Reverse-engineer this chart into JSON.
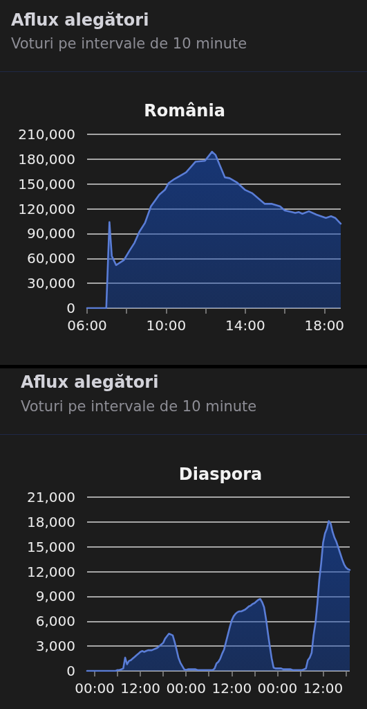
{
  "chart_data": [
    {
      "type": "other",
      "title": "Aflux alegători",
      "subtitle": "Voturi pe intervale de 10 minute"
    },
    {
      "type": "area",
      "title": "România",
      "color": "#5a7dd6",
      "marker": "none",
      "grid": "y",
      "x": [
        6,
        6.97,
        7.13,
        7.25,
        7.47,
        7.86,
        8.16,
        8.4,
        8.64,
        8.93,
        9.23,
        9.65,
        9.94,
        10.12,
        10.42,
        10.71,
        11.01,
        11.49,
        11.96,
        12.32,
        12.5,
        12.97,
        13.21,
        13.57,
        13.98,
        14.34,
        14.69,
        14.99,
        15.35,
        15.76,
        16.0,
        16.36,
        16.53,
        16.71,
        16.89,
        17.22,
        17.6,
        18.08,
        18.34,
        18.55,
        18.83
      ],
      "values": [
        0,
        0,
        104000,
        63000,
        52000,
        58000,
        70000,
        79000,
        92000,
        103000,
        123000,
        137000,
        143000,
        151000,
        156000,
        160000,
        164000,
        177000,
        178000,
        189000,
        185000,
        158000,
        157000,
        152000,
        143000,
        139000,
        132000,
        126000,
        126000,
        123000,
        118000,
        116000,
        115000,
        116000,
        114000,
        117000,
        113000,
        109000,
        111000,
        109000,
        102000
      ],
      "xlim": [
        6,
        18.83
      ],
      "xticks": [
        {
          "value": 6,
          "label": "06:00"
        },
        {
          "value": 8,
          "label": null
        },
        {
          "value": 10,
          "label": "10:00"
        },
        {
          "value": 12,
          "label": null
        },
        {
          "value": 14,
          "label": "14:00"
        },
        {
          "value": 16,
          "label": null
        },
        {
          "value": 18,
          "label": "18:00"
        }
      ],
      "ylim": [
        0,
        210000
      ],
      "yticks": [
        {
          "value": 0,
          "label": "0"
        },
        {
          "value": 30000,
          "label": "30,000"
        },
        {
          "value": 60000,
          "label": "60,000"
        },
        {
          "value": 90000,
          "label": "90,000"
        },
        {
          "value": 120000,
          "label": "120,000"
        },
        {
          "value": 150000,
          "label": "150,000"
        },
        {
          "value": 180000,
          "label": "180,000"
        },
        {
          "value": 210000,
          "label": "210,000"
        }
      ]
    },
    {
      "type": "other",
      "title": "Aflux alegători",
      "subtitle": "Voturi pe intervale de 10 minute"
    },
    {
      "type": "area",
      "title": "Diaspora",
      "color": "#5a7dd6",
      "marker": "none",
      "grid": "y",
      "categories": [
        null,
        null,
        null,
        null,
        "00:00",
        null,
        null,
        null,
        null,
        null,
        null,
        null,
        null,
        null,
        null,
        null,
        null,
        null,
        null,
        null,
        null,
        null,
        null,
        null,
        null,
        null,
        null,
        null,
        "12:00",
        null,
        null,
        null,
        null,
        null,
        null,
        null,
        null,
        null,
        null,
        null,
        null,
        null,
        null,
        null,
        null,
        null,
        null,
        null,
        null,
        null,
        null,
        null,
        "00:00",
        null,
        null,
        null,
        null,
        null,
        null,
        null,
        null,
        null,
        null,
        null,
        null,
        null,
        null,
        null,
        null,
        null,
        null,
        null,
        null,
        null,
        null,
        null,
        "12:00",
        null,
        null,
        null,
        null,
        null,
        null,
        null,
        null,
        null,
        null,
        null,
        null,
        null,
        null,
        null,
        null,
        null,
        null,
        null,
        null,
        null,
        null,
        null,
        "00:00",
        null,
        null,
        null,
        null,
        null,
        null,
        null,
        null,
        null,
        null,
        null,
        null,
        null,
        null,
        null,
        null,
        null,
        null,
        null,
        null,
        null,
        null,
        null,
        "12:00",
        null,
        null,
        null,
        null,
        null,
        null,
        null,
        null,
        null,
        null,
        null,
        null,
        null,
        null
      ],
      "values": [
        0,
        0,
        0,
        0,
        0,
        0,
        0,
        0,
        0,
        0,
        0,
        0,
        0,
        0,
        0,
        0,
        100,
        100,
        200,
        300,
        1600,
        800,
        1200,
        1300,
        1500,
        1700,
        1900,
        2100,
        2300,
        2400,
        2300,
        2400,
        2500,
        2500,
        2500,
        2600,
        2700,
        2800,
        3000,
        3200,
        3400,
        3900,
        4200,
        4500,
        4400,
        4300,
        3500,
        2600,
        1600,
        1000,
        600,
        200,
        100,
        200,
        200,
        200,
        200,
        200,
        100,
        100,
        100,
        100,
        100,
        100,
        100,
        100,
        100,
        300,
        900,
        1100,
        1500,
        2100,
        2600,
        3500,
        4400,
        5300,
        6100,
        6600,
        6900,
        7100,
        7200,
        7200,
        7300,
        7400,
        7600,
        7800,
        7900,
        8100,
        8200,
        8400,
        8600,
        8700,
        8300,
        7700,
        6300,
        4600,
        3000,
        1500,
        400,
        300,
        300,
        300,
        300,
        200,
        200,
        200,
        200,
        200,
        100,
        100,
        100,
        100,
        100,
        100,
        200,
        300,
        1300,
        1600,
        2200,
        4300,
        5800,
        8100,
        11000,
        13000,
        15500,
        16600,
        17200,
        18100,
        17800,
        16800,
        16100,
        15600,
        14900,
        14200,
        13500,
        12900,
        12500,
        12300,
        12200
      ],
      "ylim": [
        0,
        21000
      ],
      "yticks": [
        {
          "value": 0,
          "label": "0"
        },
        {
          "value": 3000,
          "label": "3,000"
        },
        {
          "value": 6000,
          "label": "6,000"
        },
        {
          "value": 9000,
          "label": "9,000"
        },
        {
          "value": 12000,
          "label": "12,000"
        },
        {
          "value": 15000,
          "label": "15,000"
        },
        {
          "value": 18000,
          "label": "18,000"
        },
        {
          "value": 21000,
          "label": "21,000"
        }
      ]
    }
  ]
}
